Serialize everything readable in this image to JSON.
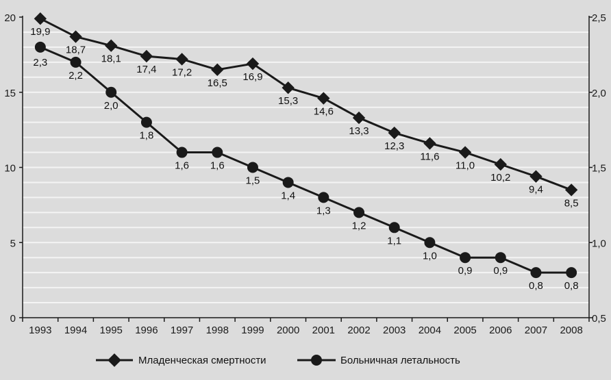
{
  "chart_data": {
    "type": "line",
    "categories": [
      "1993",
      "1994",
      "1995",
      "1996",
      "1997",
      "1998",
      "1999",
      "2000",
      "2001",
      "2002",
      "2003",
      "2004",
      "2005",
      "2006",
      "2007",
      "2008"
    ],
    "series": [
      {
        "name": "Младенческая смертности",
        "axis": "left",
        "marker": "diamond",
        "values": [
          19.9,
          18.7,
          18.1,
          17.4,
          17.2,
          16.5,
          16.9,
          15.3,
          14.6,
          13.3,
          12.3,
          11.6,
          11.0,
          10.2,
          9.4,
          8.5
        ],
        "labels": [
          "19,9",
          "18,7",
          "18,1",
          "17,4",
          "17,2",
          "16,5",
          "16,9",
          "15,3",
          "14,6",
          "13,3",
          "12,3",
          "11,6",
          "11,0",
          "10,2",
          "9,4",
          "8,5"
        ]
      },
      {
        "name": "Больничная летальность",
        "axis": "right",
        "marker": "circle",
        "values": [
          2.3,
          2.2,
          2.0,
          1.8,
          1.6,
          1.6,
          1.5,
          1.4,
          1.3,
          1.2,
          1.1,
          1.0,
          0.9,
          0.9,
          0.8,
          0.8
        ],
        "labels": [
          "2,3",
          "2,2",
          "2,0",
          "1,8",
          "1,6",
          "1,6",
          "1,5",
          "1,4",
          "1,3",
          "1,2",
          "1,1",
          "1,0",
          "0,9",
          "0,9",
          "0,8",
          "0,8"
        ]
      }
    ],
    "y_left": {
      "ylim": [
        0,
        20
      ],
      "ticks": [
        "0",
        "5",
        "10",
        "15",
        "20"
      ],
      "tick_values": [
        0,
        5,
        10,
        15,
        20
      ]
    },
    "y_right": {
      "ylim": [
        0.5,
        2.5
      ],
      "ticks": [
        "0,5",
        "1,0",
        "1,5",
        "2,0",
        "2,5"
      ],
      "tick_values": [
        0.5,
        1.0,
        1.5,
        2.0,
        2.5
      ]
    },
    "grid": "horizontal",
    "legend_position": "bottom",
    "colors": {
      "line": "#1a1a1a",
      "grid": "#f4f4f4",
      "background": "#dcdcdc"
    }
  }
}
